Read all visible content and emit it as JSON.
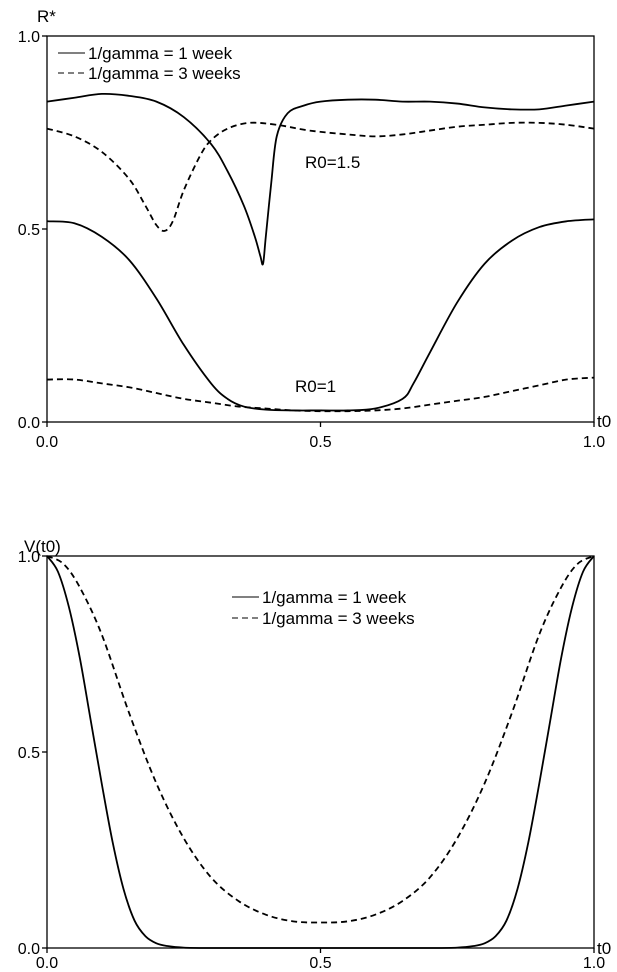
{
  "chart_data": [
    {
      "type": "line",
      "ylabel": "R*",
      "xlabel": "t0",
      "xlim": [
        0,
        1
      ],
      "ylim": [
        0,
        1
      ],
      "xticks": [
        "0.0",
        "0.5",
        "1.0"
      ],
      "yticks": [
        "0.0",
        "0.5",
        "1.0"
      ],
      "legend": [
        "1/gamma = 1 week",
        "1/gamma = 3 weeks"
      ],
      "legend_position": "top-left",
      "grid": false,
      "annotations": [
        "R0=1.5",
        "R0=1"
      ],
      "series": [
        {
          "name": "1/gamma = 1 week",
          "style": "solid",
          "group": "R0=1.5",
          "x": [
            0,
            0.05,
            0.1,
            0.15,
            0.2,
            0.25,
            0.3,
            0.33,
            0.36,
            0.38,
            0.39,
            0.395,
            0.4,
            0.41,
            0.42,
            0.44,
            0.47,
            0.5,
            0.55,
            0.6,
            0.65,
            0.7,
            0.75,
            0.8,
            0.85,
            0.9,
            0.95,
            1.0
          ],
          "y": [
            0.83,
            0.84,
            0.85,
            0.845,
            0.83,
            0.79,
            0.72,
            0.65,
            0.56,
            0.48,
            0.43,
            0.41,
            0.48,
            0.62,
            0.74,
            0.8,
            0.82,
            0.83,
            0.835,
            0.835,
            0.83,
            0.83,
            0.825,
            0.815,
            0.81,
            0.81,
            0.82,
            0.83
          ]
        },
        {
          "name": "1/gamma = 3 weeks",
          "style": "dashed",
          "group": "R0=1.5",
          "x": [
            0,
            0.05,
            0.1,
            0.15,
            0.18,
            0.2,
            0.215,
            0.23,
            0.25,
            0.28,
            0.3,
            0.33,
            0.37,
            0.42,
            0.48,
            0.55,
            0.6,
            0.65,
            0.7,
            0.75,
            0.8,
            0.85,
            0.9,
            0.95,
            1.0
          ],
          "y": [
            0.76,
            0.74,
            0.7,
            0.63,
            0.56,
            0.51,
            0.495,
            0.52,
            0.6,
            0.69,
            0.73,
            0.76,
            0.775,
            0.77,
            0.755,
            0.745,
            0.74,
            0.745,
            0.755,
            0.765,
            0.77,
            0.775,
            0.775,
            0.77,
            0.76
          ]
        },
        {
          "name": "1/gamma = 1 week",
          "style": "solid",
          "group": "R0=1",
          "x": [
            0,
            0.05,
            0.1,
            0.15,
            0.2,
            0.25,
            0.3,
            0.33,
            0.36,
            0.4,
            0.45,
            0.5,
            0.55,
            0.6,
            0.65,
            0.67,
            0.7,
            0.75,
            0.8,
            0.85,
            0.9,
            0.95,
            1.0
          ],
          "y": [
            0.52,
            0.515,
            0.48,
            0.42,
            0.32,
            0.2,
            0.1,
            0.06,
            0.04,
            0.032,
            0.03,
            0.03,
            0.03,
            0.035,
            0.06,
            0.1,
            0.18,
            0.31,
            0.41,
            0.47,
            0.505,
            0.52,
            0.525
          ]
        },
        {
          "name": "1/gamma = 3 weeks",
          "style": "dashed",
          "group": "R0=1",
          "x": [
            0,
            0.05,
            0.1,
            0.15,
            0.2,
            0.25,
            0.3,
            0.35,
            0.4,
            0.45,
            0.5,
            0.55,
            0.6,
            0.65,
            0.7,
            0.75,
            0.8,
            0.85,
            0.9,
            0.95,
            1.0
          ],
          "y": [
            0.11,
            0.11,
            0.1,
            0.09,
            0.075,
            0.06,
            0.05,
            0.04,
            0.035,
            0.03,
            0.028,
            0.028,
            0.03,
            0.035,
            0.045,
            0.055,
            0.065,
            0.08,
            0.095,
            0.11,
            0.115
          ]
        }
      ]
    },
    {
      "type": "line",
      "ylabel": "V(t0)",
      "xlabel": "t0",
      "xlim": [
        0,
        1
      ],
      "ylim": [
        0,
        1
      ],
      "xticks": [
        "0.0",
        "0.5",
        "1.0"
      ],
      "yticks": [
        "0.0",
        "0.5",
        "1.0"
      ],
      "legend": [
        "1/gamma = 1 week",
        "1/gamma = 3 weeks"
      ],
      "legend_position": "top-center",
      "grid": false,
      "series": [
        {
          "name": "1/gamma = 1 week",
          "style": "solid",
          "x": [
            0,
            0.02,
            0.04,
            0.06,
            0.08,
            0.1,
            0.12,
            0.14,
            0.16,
            0.18,
            0.2,
            0.22,
            0.25,
            0.3,
            0.4,
            0.5,
            0.6,
            0.7,
            0.75,
            0.78,
            0.8,
            0.82,
            0.84,
            0.86,
            0.88,
            0.9,
            0.92,
            0.94,
            0.96,
            0.98,
            1.0
          ],
          "y": [
            1.0,
            0.96,
            0.87,
            0.74,
            0.58,
            0.42,
            0.27,
            0.15,
            0.07,
            0.03,
            0.012,
            0.005,
            0.001,
            0,
            0,
            0,
            0,
            0,
            0.001,
            0.005,
            0.012,
            0.03,
            0.07,
            0.15,
            0.27,
            0.42,
            0.58,
            0.74,
            0.87,
            0.96,
            1.0
          ]
        },
        {
          "name": "1/gamma = 3 weeks",
          "style": "dashed",
          "x": [
            0,
            0.03,
            0.06,
            0.1,
            0.15,
            0.2,
            0.25,
            0.3,
            0.35,
            0.4,
            0.45,
            0.5,
            0.55,
            0.6,
            0.65,
            0.7,
            0.75,
            0.8,
            0.85,
            0.9,
            0.94,
            0.97,
            1.0
          ],
          "y": [
            1.0,
            0.98,
            0.92,
            0.8,
            0.6,
            0.42,
            0.28,
            0.18,
            0.12,
            0.085,
            0.068,
            0.065,
            0.068,
            0.085,
            0.12,
            0.18,
            0.28,
            0.42,
            0.6,
            0.8,
            0.92,
            0.98,
            1.0
          ]
        }
      ]
    }
  ]
}
